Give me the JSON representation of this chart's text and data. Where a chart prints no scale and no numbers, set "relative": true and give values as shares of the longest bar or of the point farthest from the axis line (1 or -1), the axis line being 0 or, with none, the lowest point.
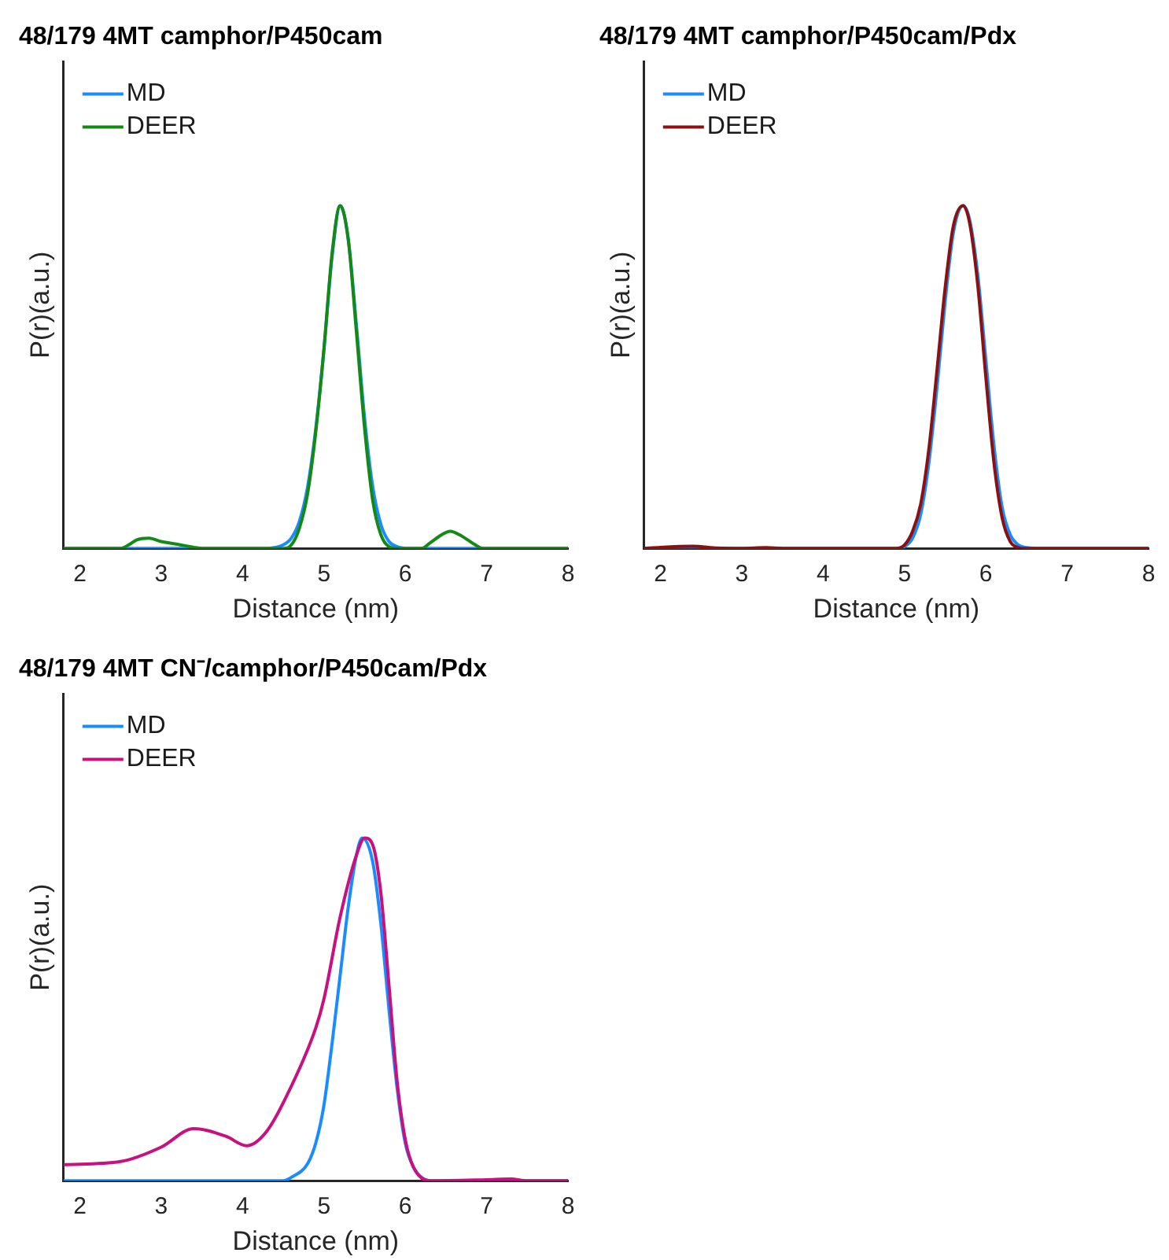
{
  "chart_data": [
    {
      "type": "line",
      "title": "48/179 4MT camphor/P450cam",
      "xlabel": "Distance (nm)",
      "ylabel": "P(r)(a.u.)",
      "relative": true,
      "xlim": [
        1.8,
        8
      ],
      "xticks": [
        2,
        3,
        4,
        5,
        6,
        7,
        8
      ],
      "tick_labels": "x",
      "grid": false,
      "legend": "top left",
      "marker": "none",
      "line_style": "solid",
      "series": [
        {
          "name": "MD",
          "color": "#1a8cff",
          "x": [
            1.8,
            4.3,
            4.5,
            4.6,
            4.7,
            4.8,
            4.9,
            5.0,
            5.1,
            5.2,
            5.3,
            5.4,
            5.5,
            5.6,
            5.7,
            5.8,
            5.9,
            6.0,
            8
          ],
          "values": [
            0,
            0,
            0.01,
            0.03,
            0.08,
            0.18,
            0.35,
            0.58,
            0.85,
            1.0,
            0.9,
            0.65,
            0.38,
            0.18,
            0.07,
            0.02,
            0.005,
            0,
            0
          ]
        },
        {
          "name": "DEER",
          "color": "#138a13",
          "x": [
            1.8,
            2.5,
            2.6,
            2.7,
            2.85,
            3.0,
            3.2,
            3.4,
            3.5,
            4.5,
            4.6,
            4.7,
            4.8,
            4.9,
            5.0,
            5.1,
            5.2,
            5.3,
            5.4,
            5.5,
            5.6,
            5.7,
            5.8,
            5.9,
            6.2,
            6.3,
            6.45,
            6.55,
            6.7,
            6.85,
            6.95,
            8
          ],
          "values": [
            0,
            0,
            0.01,
            0.025,
            0.03,
            0.02,
            0.012,
            0.003,
            0,
            0,
            0.01,
            0.06,
            0.16,
            0.34,
            0.58,
            0.86,
            1.0,
            0.9,
            0.63,
            0.35,
            0.14,
            0.04,
            0.005,
            0,
            0,
            0.015,
            0.04,
            0.05,
            0.035,
            0.012,
            0,
            0
          ]
        }
      ]
    },
    {
      "type": "line",
      "title": "48/179 4MT camphor/P450cam/Pdx",
      "xlabel": "Distance (nm)",
      "ylabel": "P(r)(a.u.)",
      "relative": true,
      "xlim": [
        1.8,
        8
      ],
      "xticks": [
        2,
        3,
        4,
        5,
        6,
        7,
        8
      ],
      "tick_labels": "x",
      "grid": false,
      "legend": "top left",
      "marker": "none",
      "line_style": "solid",
      "series": [
        {
          "name": "MD",
          "color": "#1a8cff",
          "x": [
            1.8,
            4.9,
            5.0,
            5.1,
            5.2,
            5.3,
            5.4,
            5.5,
            5.6,
            5.72,
            5.8,
            5.9,
            6.0,
            6.1,
            6.2,
            6.3,
            6.4,
            6.5,
            6.6,
            8
          ],
          "values": [
            0,
            0,
            0.005,
            0.03,
            0.1,
            0.25,
            0.47,
            0.72,
            0.92,
            1.0,
            0.96,
            0.8,
            0.55,
            0.3,
            0.12,
            0.04,
            0.01,
            0.002,
            0,
            0
          ]
        },
        {
          "name": "DEER",
          "color": "#8c1010",
          "x": [
            1.8,
            2.0,
            2.4,
            2.7,
            3.0,
            3.3,
            3.5,
            4.9,
            5.0,
            5.1,
            5.2,
            5.3,
            5.4,
            5.5,
            5.6,
            5.72,
            5.8,
            5.9,
            6.0,
            6.1,
            6.2,
            6.3,
            6.4,
            6.45,
            8
          ],
          "values": [
            0,
            0.003,
            0.006,
            0.001,
            0,
            0.002,
            0,
            0,
            0.01,
            0.05,
            0.13,
            0.29,
            0.52,
            0.76,
            0.94,
            1.0,
            0.95,
            0.77,
            0.5,
            0.25,
            0.09,
            0.02,
            0.002,
            0,
            0
          ]
        }
      ]
    },
    {
      "type": "line",
      "title": "48/179 4MT CN⁻/camphor/P450cam/Pdx",
      "xlabel": "Distance (nm)",
      "ylabel": "P(r)(a.u.)",
      "relative": true,
      "xlim": [
        1.8,
        8
      ],
      "xticks": [
        2,
        3,
        4,
        5,
        6,
        7,
        8
      ],
      "tick_labels": "x",
      "grid": false,
      "legend": "top left",
      "marker": "none",
      "line_style": "solid",
      "series": [
        {
          "name": "MD",
          "color": "#1a8cff",
          "x": [
            1.8,
            4.5,
            4.6,
            4.8,
            4.9,
            5.0,
            5.1,
            5.2,
            5.3,
            5.4,
            5.47,
            5.6,
            5.7,
            5.8,
            5.9,
            6.0,
            6.1,
            6.2,
            6.3,
            8
          ],
          "values": [
            0,
            0,
            0.01,
            0.05,
            0.11,
            0.22,
            0.4,
            0.6,
            0.8,
            0.95,
            1.0,
            0.93,
            0.75,
            0.5,
            0.27,
            0.11,
            0.04,
            0.01,
            0,
            0
          ]
        },
        {
          "name": "DEER",
          "color": "#c8107f",
          "x": [
            1.8,
            2.5,
            3.0,
            3.4,
            3.8,
            4.05,
            4.3,
            4.6,
            4.9,
            5.0,
            5.2,
            5.4,
            5.5,
            5.6,
            5.7,
            5.8,
            5.9,
            6.0,
            6.1,
            6.3,
            7.0,
            7.3,
            7.5,
            8
          ],
          "values": [
            0.047,
            0.056,
            0.098,
            0.152,
            0.129,
            0.102,
            0.145,
            0.276,
            0.446,
            0.53,
            0.77,
            0.95,
            1.0,
            0.98,
            0.84,
            0.57,
            0.29,
            0.12,
            0.04,
            0,
            0.003,
            0.005,
            0,
            0
          ]
        }
      ]
    }
  ]
}
